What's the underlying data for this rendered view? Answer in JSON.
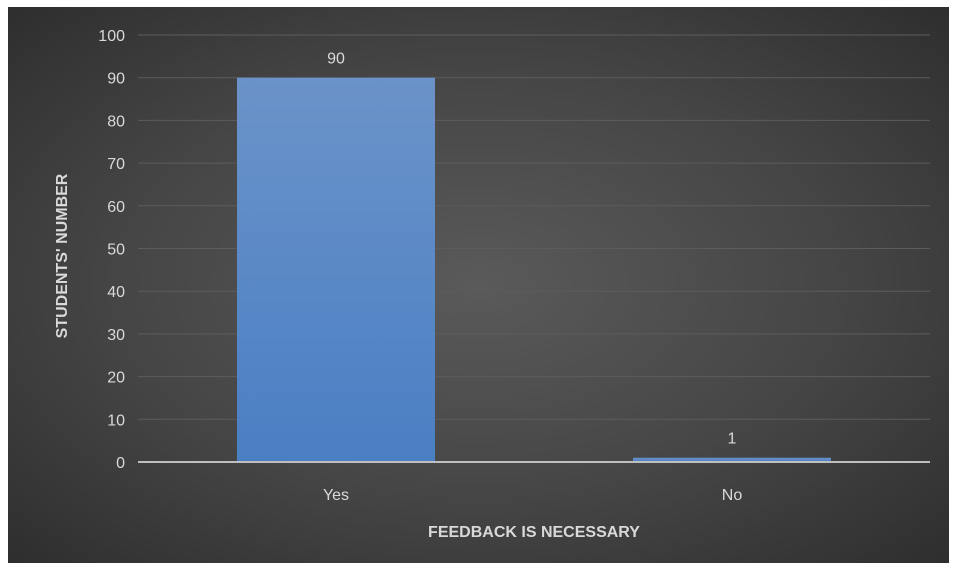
{
  "chart_data": {
    "type": "bar",
    "title": "",
    "categories": [
      "Yes",
      "No"
    ],
    "values": [
      90,
      1
    ],
    "xlabel": "FEEDBACK IS NECESSARY",
    "ylabel": "STUDENTS' NUMBER",
    "ylim": [
      0,
      100
    ],
    "yticks": [
      0,
      10,
      20,
      30,
      40,
      50,
      60,
      70,
      80,
      90,
      100
    ],
    "grid": true,
    "legend": "none",
    "data_labels": true,
    "colors": {
      "bar_top": "#6b93c9",
      "bar_bottom": "#4a7fc4",
      "background": "#4a4a4a",
      "gridline": "#5c5c5c",
      "axis_line": "#bfbfbf",
      "text": "#d9d9d9"
    }
  }
}
